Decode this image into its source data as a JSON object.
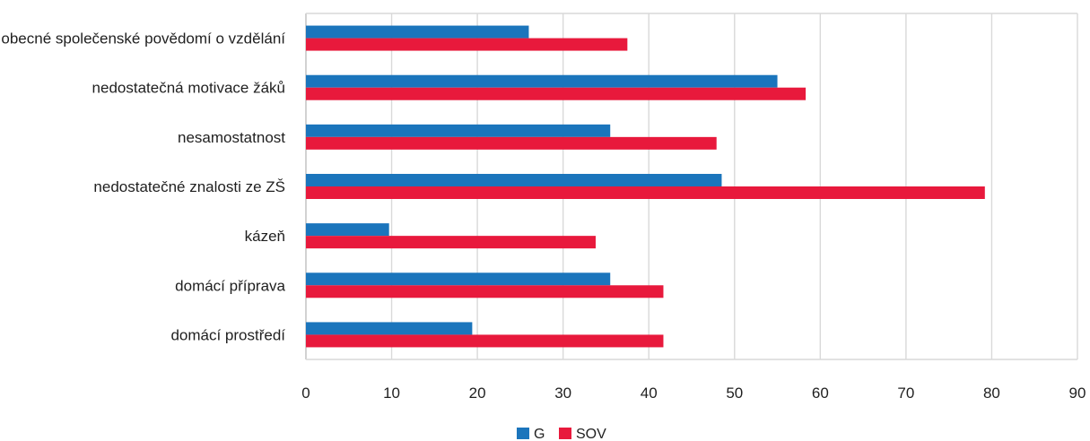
{
  "chart_data": {
    "type": "bar",
    "orientation": "horizontal",
    "title": "",
    "xlabel": "",
    "ylabel": "",
    "categories": [
      "obecné společenské povědomí o vzdělání",
      "nedostatečná motivace žáků",
      "nesamostatnost",
      "nedostatečné znalosti ze ZŠ",
      "kázeň",
      "domácí příprava",
      "domácí prostředí"
    ],
    "series": [
      {
        "name": "G",
        "color": "#1b75bc",
        "values": [
          26,
          55,
          35.5,
          48.5,
          9.7,
          35.5,
          19.4
        ]
      },
      {
        "name": "SOV",
        "color": "#e8193c",
        "values": [
          37.5,
          58.3,
          47.9,
          79.2,
          33.8,
          41.7,
          41.7
        ]
      }
    ],
    "xlim": [
      0,
      90
    ],
    "xticks": [
      0,
      10,
      20,
      30,
      40,
      50,
      60,
      70,
      80,
      90
    ],
    "grid": true,
    "legend_position": "bottom-center"
  }
}
